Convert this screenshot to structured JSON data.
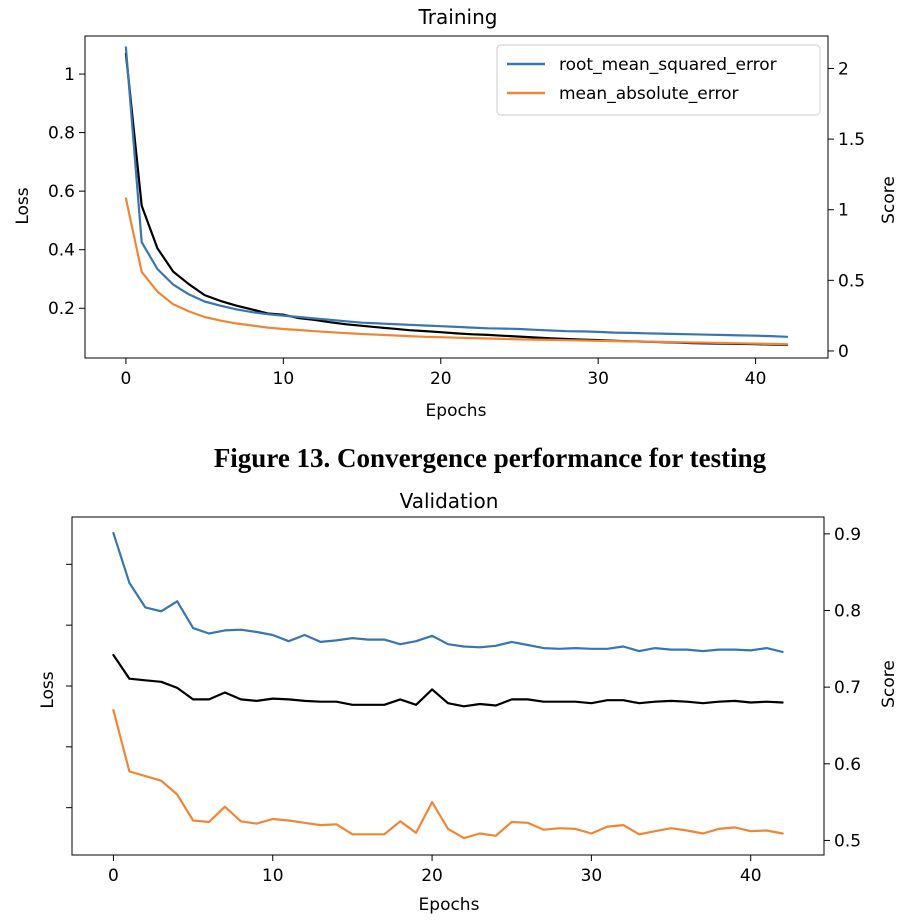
{
  "caption": "Figure 13. Convergence performance for testing",
  "chart_data": [
    {
      "type": "line",
      "title": "Training",
      "xlabel": "Epochs",
      "ylabel": "Loss",
      "y2label": "Score",
      "xlim": [
        -2.6,
        44.6
      ],
      "ylim": [
        0.03,
        1.13
      ],
      "y2lim": [
        -0.05,
        2.23
      ],
      "xticks": [
        0,
        10,
        20,
        30,
        40
      ],
      "yticks": [
        0.2,
        0.4,
        0.6,
        0.8,
        1.0
      ],
      "y2ticks": [
        0.0,
        0.5,
        1.0,
        1.5,
        2.0
      ],
      "legend_position": "top-right",
      "colors": {
        "loss": "#000000",
        "rmse": "#3a75b0",
        "mae": "#ef8636",
        "score_label": "#6b8fbf"
      },
      "x": [
        0,
        1,
        2,
        3,
        4,
        5,
        6,
        7,
        8,
        9,
        10,
        11,
        12,
        13,
        14,
        15,
        16,
        17,
        18,
        19,
        20,
        21,
        22,
        23,
        24,
        25,
        26,
        27,
        28,
        29,
        30,
        31,
        32,
        33,
        34,
        35,
        36,
        37,
        38,
        39,
        40,
        41,
        42
      ],
      "series": [
        {
          "name": "",
          "role": "loss",
          "axis": "left",
          "values": [
            1.07,
            0.55,
            0.405,
            0.325,
            0.282,
            0.245,
            0.225,
            0.209,
            0.196,
            0.182,
            0.178,
            0.166,
            0.16,
            0.152,
            0.145,
            0.14,
            0.135,
            0.13,
            0.125,
            0.122,
            0.118,
            0.114,
            0.111,
            0.109,
            0.106,
            0.103,
            0.1,
            0.097,
            0.095,
            0.093,
            0.091,
            0.089,
            0.087,
            0.086,
            0.084,
            0.083,
            0.081,
            0.08,
            0.079,
            0.078,
            0.077,
            0.076,
            0.075
          ]
        },
        {
          "name": "root_mean_squared_error",
          "role": "rmse",
          "axis": "right",
          "values": [
            2.15,
            0.77,
            0.58,
            0.47,
            0.4,
            0.35,
            0.32,
            0.295,
            0.275,
            0.26,
            0.25,
            0.24,
            0.23,
            0.22,
            0.21,
            0.2,
            0.195,
            0.19,
            0.185,
            0.18,
            0.175,
            0.17,
            0.165,
            0.16,
            0.158,
            0.155,
            0.15,
            0.145,
            0.14,
            0.138,
            0.135,
            0.13,
            0.128,
            0.125,
            0.123,
            0.12,
            0.118,
            0.115,
            0.113,
            0.11,
            0.108,
            0.105,
            0.1
          ]
        },
        {
          "name": "mean_absolute_error",
          "role": "mae",
          "axis": "right",
          "values": [
            1.08,
            0.56,
            0.42,
            0.33,
            0.28,
            0.24,
            0.215,
            0.195,
            0.18,
            0.165,
            0.155,
            0.148,
            0.14,
            0.133,
            0.126,
            0.12,
            0.115,
            0.11,
            0.105,
            0.1,
            0.097,
            0.094,
            0.091,
            0.088,
            0.085,
            0.082,
            0.08,
            0.078,
            0.076,
            0.074,
            0.072,
            0.07,
            0.068,
            0.066,
            0.064,
            0.062,
            0.06,
            0.058,
            0.056,
            0.054,
            0.052,
            0.05,
            0.048
          ]
        }
      ]
    },
    {
      "type": "line",
      "title": "Validation",
      "xlabel": "Epochs",
      "ylabel": "Loss",
      "y2label": "Score",
      "xlim": [
        -2.6,
        44.6
      ],
      "ylim": [
        0.0,
        1.0
      ],
      "y2lim": [
        0.481,
        0.922
      ],
      "xticks": [
        0,
        10,
        20,
        30,
        40
      ],
      "y_tick_positions": [
        0.14,
        0.32,
        0.5,
        0.68,
        0.86
      ],
      "y2ticks": [
        0.5,
        0.6,
        0.7,
        0.8,
        0.9
      ],
      "legend_position": "none",
      "colors": {
        "loss": "#000000",
        "rmse": "#3a75b0",
        "mae": "#ef8636",
        "score_label": "#6b8fbf"
      },
      "x": [
        0,
        1,
        2,
        3,
        4,
        5,
        6,
        7,
        8,
        9,
        10,
        11,
        12,
        13,
        14,
        15,
        16,
        17,
        18,
        19,
        20,
        21,
        22,
        23,
        24,
        25,
        26,
        27,
        28,
        29,
        30,
        31,
        32,
        33,
        34,
        35,
        36,
        37,
        38,
        39,
        40,
        41,
        42
      ],
      "series": [
        {
          "name": "",
          "role": "loss",
          "axis": "right",
          "values": [
            0.742,
            0.711,
            0.709,
            0.707,
            0.699,
            0.684,
            0.684,
            0.693,
            0.684,
            0.682,
            0.685,
            0.684,
            0.682,
            0.681,
            0.681,
            0.677,
            0.677,
            0.677,
            0.684,
            0.677,
            0.697,
            0.679,
            0.675,
            0.678,
            0.676,
            0.684,
            0.684,
            0.681,
            0.681,
            0.681,
            0.679,
            0.683,
            0.683,
            0.679,
            0.681,
            0.682,
            0.681,
            0.679,
            0.681,
            0.682,
            0.68,
            0.681,
            0.68
          ]
        },
        {
          "name": "",
          "role": "rmse",
          "axis": "right",
          "values": [
            0.901,
            0.836,
            0.804,
            0.799,
            0.812,
            0.777,
            0.77,
            0.774,
            0.775,
            0.772,
            0.768,
            0.76,
            0.768,
            0.759,
            0.761,
            0.764,
            0.762,
            0.762,
            0.756,
            0.76,
            0.767,
            0.756,
            0.753,
            0.752,
            0.754,
            0.759,
            0.755,
            0.751,
            0.75,
            0.751,
            0.75,
            0.75,
            0.753,
            0.747,
            0.751,
            0.749,
            0.749,
            0.747,
            0.749,
            0.749,
            0.748,
            0.751,
            0.746
          ]
        },
        {
          "name": "",
          "role": "mae",
          "axis": "right",
          "values": [
            0.67,
            0.59,
            0.584,
            0.578,
            0.56,
            0.526,
            0.524,
            0.544,
            0.525,
            0.522,
            0.528,
            0.526,
            0.523,
            0.52,
            0.521,
            0.508,
            0.508,
            0.508,
            0.525,
            0.51,
            0.55,
            0.515,
            0.503,
            0.509,
            0.506,
            0.524,
            0.523,
            0.514,
            0.516,
            0.515,
            0.509,
            0.518,
            0.52,
            0.508,
            0.512,
            0.516,
            0.513,
            0.509,
            0.515,
            0.517,
            0.512,
            0.513,
            0.509
          ]
        }
      ]
    }
  ]
}
